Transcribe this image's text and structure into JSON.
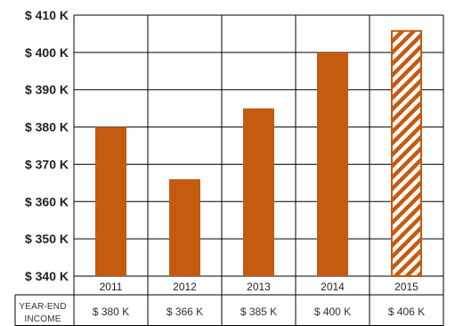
{
  "chart_data": {
    "type": "bar",
    "categories": [
      "2011",
      "2012",
      "2013",
      "2014",
      "2015"
    ],
    "values": [
      380,
      366,
      385,
      400,
      406
    ],
    "value_unit": "$ K",
    "ylim": [
      340,
      410
    ],
    "yticks": [
      340,
      350,
      360,
      370,
      380,
      390,
      400,
      410
    ],
    "ytick_labels": [
      "$ 340 K",
      "$ 350 K",
      "$ 360 K",
      "$ 370 K",
      "$ 380 K",
      "$ 390 K",
      "$ 400 K",
      "$ 410 K"
    ],
    "grid": true,
    "bar_color": "#c55a11",
    "hatched_categories": [
      "2015"
    ],
    "data_table": {
      "row_header_line1": "YEAR-END",
      "row_header_line2": "INCOME",
      "cells": [
        "$ 380 K",
        "$ 366 K",
        "$ 385 K",
        "$ 400 K",
        "$ 406 K"
      ]
    }
  }
}
